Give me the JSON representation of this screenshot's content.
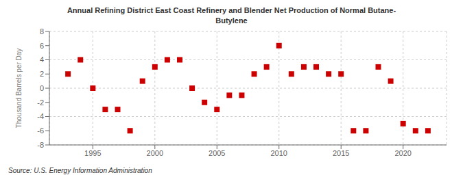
{
  "chart_data": {
    "type": "scatter",
    "title": "Annual Refining District East Coast Refinery and Blender Net Production of Normal Butane-\nButylene",
    "ylabel": "Thousand Barrels per Day",
    "source": "Source: U.S. Energy Information Administration",
    "x": [
      1993,
      1994,
      1995,
      1996,
      1997,
      1998,
      1999,
      2000,
      2001,
      2002,
      2003,
      2004,
      2005,
      2006,
      2007,
      2008,
      2009,
      2010,
      2011,
      2012,
      2013,
      2014,
      2015,
      2016,
      2017,
      2018,
      2019,
      2020,
      2021,
      2022
    ],
    "values": [
      2,
      4,
      0,
      -3,
      -3,
      -6,
      1,
      3,
      4,
      4,
      0,
      -2,
      -3,
      -1,
      -1,
      2,
      3,
      6,
      2,
      3,
      3,
      2,
      2,
      -6,
      -6,
      3,
      1,
      -5,
      -6,
      -6
    ],
    "color": "#cc0000",
    "marker": "square",
    "xlim": [
      1991.5,
      2023.5
    ],
    "xticks": [
      1995,
      2000,
      2005,
      2010,
      2015,
      2020
    ],
    "ylim": [
      -8,
      8
    ],
    "yticks": [
      -8,
      -6,
      -4,
      -2,
      0,
      2,
      4,
      6,
      8
    ],
    "grid": true
  }
}
